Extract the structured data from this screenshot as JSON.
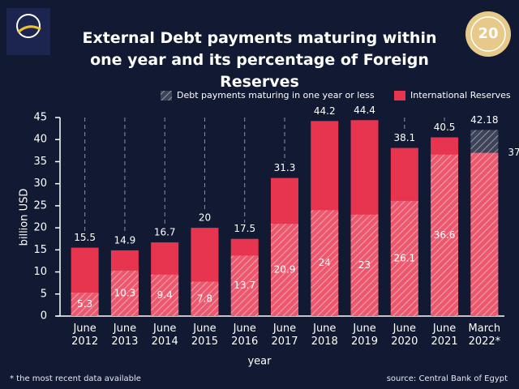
{
  "chart_data": {
    "type": "bar",
    "title": "External Debt payments maturing within one year and its percentage of Foreign Reserves",
    "badge": "20",
    "categories": [
      "June 2012",
      "June 2013",
      "June 2014",
      "June 2015",
      "June 2016",
      "June 2017",
      "June 2018",
      "June 2019",
      "June 2020",
      "June 2021",
      "March 2022*"
    ],
    "series": [
      {
        "name": "International Reserves",
        "color": "#e8354f",
        "values": [
          15.5,
          14.9,
          16.7,
          20,
          17.5,
          31.3,
          44.2,
          44.4,
          38.1,
          40.5,
          37
        ]
      },
      {
        "name": "Debt payments maturing in one year or less",
        "color": "#f47a93",
        "hatched": true,
        "values": [
          5.3,
          10.3,
          9.4,
          7.8,
          13.7,
          20.9,
          24,
          23,
          26.1,
          36.6,
          42.18
        ]
      }
    ],
    "ylabel": "billion USD",
    "xlabel": "year",
    "ylim": [
      0,
      45
    ],
    "yticks": [
      0,
      5,
      10,
      15,
      20,
      25,
      30,
      35,
      40,
      45
    ],
    "legend": "top-right",
    "footnote": "* the most recent data available",
    "source": "source: Central Bank of Egypt"
  }
}
